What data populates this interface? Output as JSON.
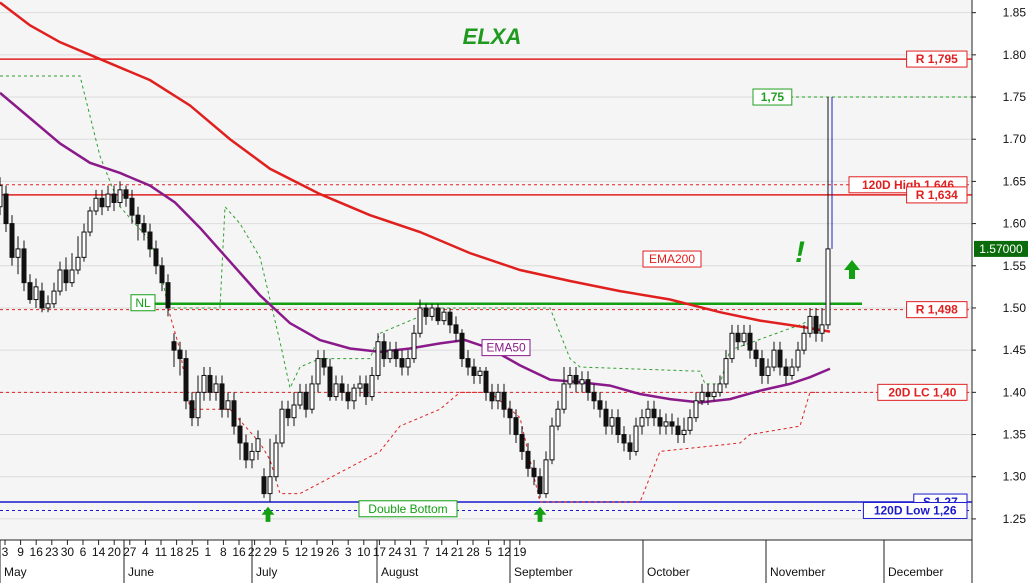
{
  "chart_data": {
    "type": "candlestick",
    "title": "ELXA",
    "xlabel": "",
    "ylabel": "",
    "ylim": [
      1.225,
      1.865
    ],
    "y_ticks": [
      1.25,
      1.3,
      1.35,
      1.4,
      1.45,
      1.5,
      1.55,
      1.6,
      1.65,
      1.7,
      1.75,
      1.8,
      1.85
    ],
    "x_day_ticks": [
      "3",
      "9",
      "16",
      "23",
      "30",
      "6",
      "14",
      "20",
      "27",
      "4",
      "11",
      "18",
      "25",
      "1",
      "8",
      "16",
      "22",
      "29",
      "5",
      "12",
      "19",
      "26",
      "3",
      "10",
      "17",
      "24",
      "31",
      "7",
      "14",
      "21",
      "28",
      "5",
      "12",
      "19"
    ],
    "months": [
      "May",
      "June",
      "July",
      "August",
      "September",
      "October",
      "November",
      "December"
    ],
    "last_price_label": "1.57000",
    "levels": [
      {
        "label": "R 1,795",
        "value": 1.795,
        "style": "solid",
        "color": "#e02020"
      },
      {
        "label": "1,75",
        "value": 1.75,
        "style": "dotted",
        "color": "#20a020"
      },
      {
        "label": "120D High 1,646",
        "value": 1.646,
        "style": "dotted",
        "color": "#e02020"
      },
      {
        "label": "R 1,634",
        "value": 1.634,
        "style": "solid",
        "color": "#e02020"
      },
      {
        "label": "R 1,498",
        "value": 1.498,
        "style": "dotted",
        "color": "#e02020"
      },
      {
        "label": "20D LC 1,40",
        "value": 1.4,
        "style": "dotted",
        "color": "#e02020"
      },
      {
        "label": "S 1,27",
        "value": 1.27,
        "style": "solid",
        "color": "#1a1acc"
      },
      {
        "label": "120D Low 1,26",
        "value": 1.26,
        "style": "dotted",
        "color": "#1a1acc"
      }
    ],
    "neckline": {
      "label": "NL",
      "value": 1.505
    },
    "annotations": {
      "ema200": "EMA200",
      "ema50": "EMA50",
      "double_bottom": "Double Bottom",
      "exclamation": "!"
    },
    "ema200": [
      [
        0,
        1.862
      ],
      [
        30,
        1.835
      ],
      [
        60,
        1.815
      ],
      [
        100,
        1.795
      ],
      [
        150,
        1.77
      ],
      [
        190,
        1.74
      ],
      [
        230,
        1.7
      ],
      [
        270,
        1.665
      ],
      [
        320,
        1.635
      ],
      [
        370,
        1.61
      ],
      [
        420,
        1.59
      ],
      [
        470,
        1.565
      ],
      [
        520,
        1.545
      ],
      [
        570,
        1.532
      ],
      [
        620,
        1.52
      ],
      [
        670,
        1.51
      ],
      [
        720,
        1.495
      ],
      [
        760,
        1.485
      ],
      [
        800,
        1.478
      ],
      [
        830,
        1.472
      ]
    ],
    "ema50": [
      [
        0,
        1.755
      ],
      [
        30,
        1.725
      ],
      [
        60,
        1.695
      ],
      [
        90,
        1.672
      ],
      [
        120,
        1.66
      ],
      [
        150,
        1.645
      ],
      [
        175,
        1.625
      ],
      [
        200,
        1.595
      ],
      [
        230,
        1.555
      ],
      [
        260,
        1.515
      ],
      [
        290,
        1.482
      ],
      [
        320,
        1.462
      ],
      [
        350,
        1.452
      ],
      [
        380,
        1.448
      ],
      [
        410,
        1.452
      ],
      [
        440,
        1.458
      ],
      [
        465,
        1.462
      ],
      [
        490,
        1.452
      ],
      [
        520,
        1.432
      ],
      [
        550,
        1.415
      ],
      [
        580,
        1.412
      ],
      [
        610,
        1.408
      ],
      [
        640,
        1.398
      ],
      [
        670,
        1.392
      ],
      [
        700,
        1.388
      ],
      [
        730,
        1.392
      ],
      [
        760,
        1.402
      ],
      [
        790,
        1.41
      ],
      [
        810,
        1.418
      ],
      [
        830,
        1.428
      ]
    ],
    "candles": [
      [
        0,
        1.62,
        1.645,
        1.61,
        1.655
      ],
      [
        6,
        1.635,
        1.6,
        1.59,
        1.645
      ],
      [
        12,
        1.6,
        1.56,
        1.55,
        1.61
      ],
      [
        18,
        1.56,
        1.57,
        1.54,
        1.585
      ],
      [
        24,
        1.57,
        1.53,
        1.52,
        1.58
      ],
      [
        30,
        1.53,
        1.51,
        1.505,
        1.54
      ],
      [
        36,
        1.51,
        1.525,
        1.5,
        1.535
      ],
      [
        42,
        1.52,
        1.5,
        1.495,
        1.53
      ],
      [
        48,
        1.5,
        1.505,
        1.495,
        1.515
      ],
      [
        54,
        1.505,
        1.52,
        1.5,
        1.53
      ],
      [
        60,
        1.52,
        1.545,
        1.515,
        1.555
      ],
      [
        66,
        1.545,
        1.53,
        1.52,
        1.56
      ],
      [
        72,
        1.53,
        1.545,
        1.525,
        1.565
      ],
      [
        78,
        1.545,
        1.56,
        1.54,
        1.585
      ],
      [
        84,
        1.56,
        1.59,
        1.555,
        1.6
      ],
      [
        90,
        1.59,
        1.615,
        1.585,
        1.62
      ],
      [
        96,
        1.615,
        1.63,
        1.61,
        1.64
      ],
      [
        102,
        1.63,
        1.62,
        1.61,
        1.64
      ],
      [
        108,
        1.62,
        1.635,
        1.615,
        1.645
      ],
      [
        114,
        1.635,
        1.625,
        1.615,
        1.645
      ],
      [
        120,
        1.625,
        1.64,
        1.62,
        1.65
      ],
      [
        126,
        1.64,
        1.63,
        1.62,
        1.645
      ],
      [
        132,
        1.63,
        1.61,
        1.6,
        1.64
      ],
      [
        138,
        1.61,
        1.6,
        1.58,
        1.62
      ],
      [
        144,
        1.6,
        1.59,
        1.58,
        1.61
      ],
      [
        150,
        1.59,
        1.57,
        1.56,
        1.6
      ],
      [
        156,
        1.57,
        1.55,
        1.54,
        1.58
      ],
      [
        162,
        1.55,
        1.53,
        1.52,
        1.56
      ],
      [
        168,
        1.53,
        1.5,
        1.49,
        1.54
      ],
      [
        174,
        1.46,
        1.45,
        1.43,
        1.47
      ],
      [
        180,
        1.45,
        1.44,
        1.42,
        1.46
      ],
      [
        186,
        1.44,
        1.39,
        1.38,
        1.45
      ],
      [
        192,
        1.39,
        1.37,
        1.36,
        1.4
      ],
      [
        198,
        1.37,
        1.4,
        1.36,
        1.42
      ],
      [
        204,
        1.4,
        1.42,
        1.39,
        1.43
      ],
      [
        210,
        1.42,
        1.4,
        1.39,
        1.43
      ],
      [
        216,
        1.4,
        1.41,
        1.39,
        1.42
      ],
      [
        222,
        1.41,
        1.38,
        1.37,
        1.42
      ],
      [
        228,
        1.38,
        1.39,
        1.37,
        1.4
      ],
      [
        234,
        1.39,
        1.36,
        1.35,
        1.4
      ],
      [
        240,
        1.36,
        1.34,
        1.32,
        1.37
      ],
      [
        246,
        1.34,
        1.32,
        1.31,
        1.35
      ],
      [
        252,
        1.32,
        1.33,
        1.31,
        1.34
      ],
      [
        258,
        1.33,
        1.345,
        1.32,
        1.355
      ],
      [
        264,
        1.3,
        1.28,
        1.275,
        1.31
      ],
      [
        270,
        1.28,
        1.3,
        1.27,
        1.345
      ],
      [
        276,
        1.3,
        1.34,
        1.295,
        1.35
      ],
      [
        282,
        1.34,
        1.38,
        1.335,
        1.39
      ],
      [
        288,
        1.38,
        1.37,
        1.36,
        1.39
      ],
      [
        294,
        1.37,
        1.385,
        1.36,
        1.4
      ],
      [
        300,
        1.385,
        1.4,
        1.38,
        1.41
      ],
      [
        306,
        1.4,
        1.38,
        1.37,
        1.41
      ],
      [
        312,
        1.38,
        1.41,
        1.375,
        1.42
      ],
      [
        318,
        1.41,
        1.44,
        1.4,
        1.45
      ],
      [
        324,
        1.44,
        1.43,
        1.42,
        1.45
      ],
      [
        330,
        1.43,
        1.395,
        1.39,
        1.44
      ],
      [
        336,
        1.395,
        1.41,
        1.39,
        1.42
      ],
      [
        342,
        1.41,
        1.4,
        1.39,
        1.42
      ],
      [
        348,
        1.4,
        1.39,
        1.38,
        1.41
      ],
      [
        354,
        1.39,
        1.405,
        1.38,
        1.41
      ],
      [
        360,
        1.405,
        1.41,
        1.395,
        1.42
      ],
      [
        366,
        1.41,
        1.395,
        1.385,
        1.42
      ],
      [
        372,
        1.395,
        1.42,
        1.39,
        1.43
      ],
      [
        378,
        1.42,
        1.46,
        1.415,
        1.47
      ],
      [
        384,
        1.46,
        1.44,
        1.43,
        1.47
      ],
      [
        390,
        1.44,
        1.45,
        1.435,
        1.46
      ],
      [
        396,
        1.45,
        1.44,
        1.43,
        1.46
      ],
      [
        402,
        1.44,
        1.43,
        1.42,
        1.45
      ],
      [
        408,
        1.43,
        1.44,
        1.42,
        1.45
      ],
      [
        414,
        1.44,
        1.47,
        1.435,
        1.48
      ],
      [
        420,
        1.47,
        1.5,
        1.465,
        1.51
      ],
      [
        426,
        1.5,
        1.49,
        1.48,
        1.505
      ],
      [
        432,
        1.49,
        1.5,
        1.485,
        1.505
      ],
      [
        438,
        1.5,
        1.485,
        1.48,
        1.505
      ],
      [
        444,
        1.485,
        1.495,
        1.48,
        1.5
      ],
      [
        450,
        1.495,
        1.48,
        1.47,
        1.5
      ],
      [
        456,
        1.48,
        1.47,
        1.46,
        1.49
      ],
      [
        462,
        1.47,
        1.44,
        1.43,
        1.475
      ],
      [
        468,
        1.44,
        1.43,
        1.42,
        1.45
      ],
      [
        474,
        1.43,
        1.42,
        1.41,
        1.44
      ],
      [
        480,
        1.42,
        1.425,
        1.41,
        1.43
      ],
      [
        486,
        1.425,
        1.4,
        1.39,
        1.43
      ],
      [
        492,
        1.4,
        1.39,
        1.38,
        1.41
      ],
      [
        498,
        1.39,
        1.4,
        1.38,
        1.41
      ],
      [
        504,
        1.4,
        1.38,
        1.37,
        1.41
      ],
      [
        510,
        1.38,
        1.37,
        1.35,
        1.39
      ],
      [
        516,
        1.37,
        1.35,
        1.34,
        1.38
      ],
      [
        522,
        1.35,
        1.33,
        1.32,
        1.36
      ],
      [
        528,
        1.33,
        1.31,
        1.3,
        1.34
      ],
      [
        534,
        1.31,
        1.3,
        1.29,
        1.32
      ],
      [
        540,
        1.3,
        1.28,
        1.275,
        1.31
      ],
      [
        546,
        1.28,
        1.32,
        1.275,
        1.33
      ],
      [
        552,
        1.32,
        1.36,
        1.315,
        1.37
      ],
      [
        558,
        1.36,
        1.38,
        1.355,
        1.39
      ],
      [
        564,
        1.38,
        1.41,
        1.375,
        1.43
      ],
      [
        570,
        1.41,
        1.42,
        1.405,
        1.43
      ],
      [
        576,
        1.42,
        1.41,
        1.4,
        1.43
      ],
      [
        582,
        1.41,
        1.415,
        1.4,
        1.425
      ],
      [
        588,
        1.415,
        1.4,
        1.39,
        1.425
      ],
      [
        594,
        1.4,
        1.39,
        1.38,
        1.41
      ],
      [
        600,
        1.39,
        1.38,
        1.37,
        1.4
      ],
      [
        606,
        1.38,
        1.36,
        1.35,
        1.39
      ],
      [
        612,
        1.36,
        1.37,
        1.35,
        1.38
      ],
      [
        618,
        1.37,
        1.35,
        1.34,
        1.38
      ],
      [
        624,
        1.35,
        1.34,
        1.33,
        1.36
      ],
      [
        630,
        1.34,
        1.33,
        1.32,
        1.35
      ],
      [
        636,
        1.33,
        1.36,
        1.325,
        1.37
      ],
      [
        642,
        1.36,
        1.37,
        1.35,
        1.38
      ],
      [
        648,
        1.37,
        1.38,
        1.36,
        1.39
      ],
      [
        654,
        1.38,
        1.37,
        1.36,
        1.39
      ],
      [
        660,
        1.37,
        1.36,
        1.35,
        1.38
      ],
      [
        666,
        1.36,
        1.365,
        1.35,
        1.375
      ],
      [
        672,
        1.365,
        1.36,
        1.35,
        1.375
      ],
      [
        678,
        1.36,
        1.35,
        1.34,
        1.37
      ],
      [
        684,
        1.35,
        1.355,
        1.34,
        1.37
      ],
      [
        690,
        1.355,
        1.37,
        1.35,
        1.38
      ],
      [
        696,
        1.37,
        1.39,
        1.365,
        1.4
      ],
      [
        702,
        1.39,
        1.4,
        1.385,
        1.41
      ],
      [
        708,
        1.4,
        1.395,
        1.385,
        1.41
      ],
      [
        714,
        1.395,
        1.4,
        1.39,
        1.41
      ],
      [
        720,
        1.4,
        1.41,
        1.395,
        1.42
      ],
      [
        726,
        1.41,
        1.44,
        1.405,
        1.45
      ],
      [
        732,
        1.44,
        1.47,
        1.435,
        1.48
      ],
      [
        738,
        1.47,
        1.46,
        1.45,
        1.48
      ],
      [
        744,
        1.46,
        1.47,
        1.455,
        1.48
      ],
      [
        750,
        1.47,
        1.45,
        1.44,
        1.48
      ],
      [
        756,
        1.45,
        1.44,
        1.43,
        1.46
      ],
      [
        762,
        1.44,
        1.42,
        1.41,
        1.45
      ],
      [
        768,
        1.42,
        1.43,
        1.41,
        1.44
      ],
      [
        774,
        1.43,
        1.45,
        1.425,
        1.46
      ],
      [
        780,
        1.45,
        1.43,
        1.42,
        1.46
      ],
      [
        786,
        1.43,
        1.42,
        1.41,
        1.44
      ],
      [
        792,
        1.42,
        1.43,
        1.415,
        1.44
      ],
      [
        798,
        1.43,
        1.45,
        1.425,
        1.46
      ],
      [
        804,
        1.45,
        1.47,
        1.445,
        1.48
      ],
      [
        810,
        1.47,
        1.49,
        1.465,
        1.5
      ],
      [
        816,
        1.49,
        1.47,
        1.46,
        1.5
      ],
      [
        822,
        1.47,
        1.48,
        1.46,
        1.5
      ],
      [
        828,
        1.48,
        1.57,
        1.475,
        1.75
      ]
    ]
  }
}
